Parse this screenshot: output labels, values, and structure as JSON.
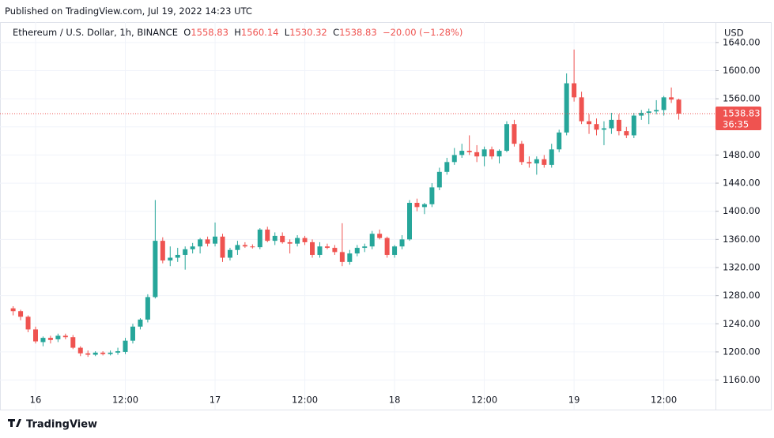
{
  "published": "Published on TradingView.com, Jul 19, 2022 14:23 UTC",
  "brand": "TradingView",
  "chart_data": {
    "type": "candlestick",
    "title": "Ethereum / U.S. Dollar, 1h, BINANCE",
    "ohlc_keys": [
      "O",
      "H",
      "L",
      "C"
    ],
    "change": "−20.00 (−1.28%)",
    "countdown": "36:35",
    "y_axis_label": "USD",
    "up_color": "#26a69a",
    "down_color": "#ef5350",
    "grid": true,
    "categories": [
      null,
      null,
      null,
      "16",
      null,
      null,
      null,
      null,
      null,
      null,
      null,
      null,
      null,
      null,
      null,
      "12:00",
      null,
      null,
      null,
      null,
      null,
      null,
      null,
      null,
      null,
      null,
      null,
      "17",
      null,
      null,
      null,
      null,
      null,
      null,
      null,
      null,
      null,
      null,
      null,
      "12:00",
      null,
      null,
      null,
      null,
      null,
      null,
      null,
      null,
      null,
      null,
      null,
      "18",
      null,
      null,
      null,
      null,
      null,
      null,
      null,
      null,
      null,
      null,
      null,
      "12:00",
      null,
      null,
      null,
      null,
      null,
      null,
      null,
      null,
      null,
      null,
      null,
      "19",
      null,
      null,
      null,
      null,
      null,
      null,
      null,
      null,
      null,
      null,
      null,
      "12:00",
      null,
      null
    ],
    "open": [
      1262,
      1258,
      1250,
      1232,
      1214,
      1220,
      1218,
      1223,
      1221,
      1206,
      1198,
      1196,
      1199,
      1197,
      1199,
      1200,
      1216,
      1236,
      1246,
      1278,
      1358,
      1330,
      1334,
      1338,
      1346,
      1350,
      1360,
      1354,
      1364,
      1334,
      1345,
      1352,
      1350,
      1349,
      1374,
      1358,
      1365,
      1356,
      1354,
      1362,
      1356,
      1338,
      1350,
      1348,
      1342,
      1328,
      1340,
      1348,
      1350,
      1368,
      1362,
      1338,
      1350,
      1360,
      1412,
      1406,
      1410,
      1434,
      1456,
      1470,
      1480,
      1486,
      1484,
      1478,
      1488,
      1478,
      1486,
      1524,
      1496,
      1470,
      1468,
      1474,
      1466,
      1488,
      1512,
      1582,
      1562,
      1528,
      1524,
      1516,
      1518,
      1530,
      1514,
      1508,
      1536,
      1540,
      1542,
      1544,
      1562,
      1558.83
    ],
    "high": [
      1265,
      1260,
      1252,
      1236,
      1222,
      1223,
      1226,
      1226,
      1224,
      1208,
      1202,
      1201,
      1201,
      1202,
      1206,
      1220,
      1240,
      1248,
      1282,
      1416,
      1363,
      1350,
      1348,
      1350,
      1355,
      1362,
      1364,
      1384,
      1368,
      1348,
      1358,
      1356,
      1353,
      1376,
      1378,
      1370,
      1370,
      1360,
      1366,
      1365,
      1360,
      1356,
      1354,
      1352,
      1383,
      1345,
      1352,
      1354,
      1372,
      1374,
      1364,
      1352,
      1366,
      1416,
      1418,
      1412,
      1440,
      1462,
      1476,
      1490,
      1496,
      1508,
      1494,
      1492,
      1492,
      1488,
      1528,
      1530,
      1500,
      1478,
      1478,
      1480,
      1496,
      1516,
      1596,
      1630,
      1570,
      1538,
      1532,
      1528,
      1540,
      1538,
      1520,
      1540,
      1544,
      1546,
      1558,
      1564,
      1576,
      1560.14
    ],
    "low": [
      1252,
      1245,
      1228,
      1212,
      1208,
      1212,
      1214,
      1218,
      1204,
      1194,
      1193,
      1194,
      1195,
      1195,
      1196,
      1197,
      1212,
      1232,
      1242,
      1276,
      1326,
      1322,
      1328,
      1317,
      1340,
      1340,
      1350,
      1350,
      1328,
      1330,
      1338,
      1348,
      1347,
      1346,
      1356,
      1352,
      1354,
      1340,
      1350,
      1352,
      1334,
      1334,
      1346,
      1338,
      1322,
      1324,
      1336,
      1342,
      1346,
      1360,
      1334,
      1334,
      1346,
      1358,
      1400,
      1396,
      1406,
      1430,
      1452,
      1466,
      1476,
      1480,
      1470,
      1464,
      1474,
      1468,
      1484,
      1492,
      1466,
      1462,
      1452,
      1462,
      1462,
      1484,
      1508,
      1556,
      1524,
      1510,
      1508,
      1494,
      1510,
      1508,
      1504,
      1504,
      1530,
      1524,
      1538,
      1536,
      1554,
      1530.32
    ],
    "close": [
      1258,
      1250,
      1232,
      1215,
      1220,
      1217,
      1223,
      1221,
      1206,
      1198,
      1196,
      1199,
      1197,
      1199,
      1201,
      1216,
      1236,
      1246,
      1278,
      1358,
      1330,
      1334,
      1338,
      1346,
      1350,
      1360,
      1354,
      1364,
      1334,
      1345,
      1352,
      1350,
      1349,
      1374,
      1358,
      1365,
      1356,
      1354,
      1362,
      1356,
      1338,
      1350,
      1348,
      1342,
      1328,
      1340,
      1348,
      1350,
      1368,
      1362,
      1338,
      1350,
      1360,
      1412,
      1406,
      1410,
      1434,
      1456,
      1470,
      1480,
      1486,
      1484,
      1478,
      1488,
      1478,
      1486,
      1524,
      1496,
      1470,
      1468,
      1474,
      1466,
      1488,
      1512,
      1582,
      1562,
      1528,
      1524,
      1516,
      1518,
      1530,
      1514,
      1508,
      1536,
      1540,
      1542,
      1544,
      1562,
      1558.83,
      1538.83
    ],
    "ylim": [
      1118,
      1669
    ],
    "yticks": [
      {
        "value": 1160,
        "label": "1160.00"
      },
      {
        "value": 1200,
        "label": "1200.00"
      },
      {
        "value": 1240,
        "label": "1240.00"
      },
      {
        "value": 1280,
        "label": "1280.00"
      },
      {
        "value": 1320,
        "label": "1320.00"
      },
      {
        "value": 1360,
        "label": "1360.00"
      },
      {
        "value": 1400,
        "label": "1400.00"
      },
      {
        "value": 1440,
        "label": "1440.00"
      },
      {
        "value": 1480,
        "label": "1480.00"
      },
      {
        "value": 1520,
        "label": "1520.00"
      },
      {
        "value": 1560,
        "label": "1560.00"
      },
      {
        "value": 1600,
        "label": "1600.00"
      },
      {
        "value": 1640,
        "label": "1640.00"
      }
    ]
  }
}
